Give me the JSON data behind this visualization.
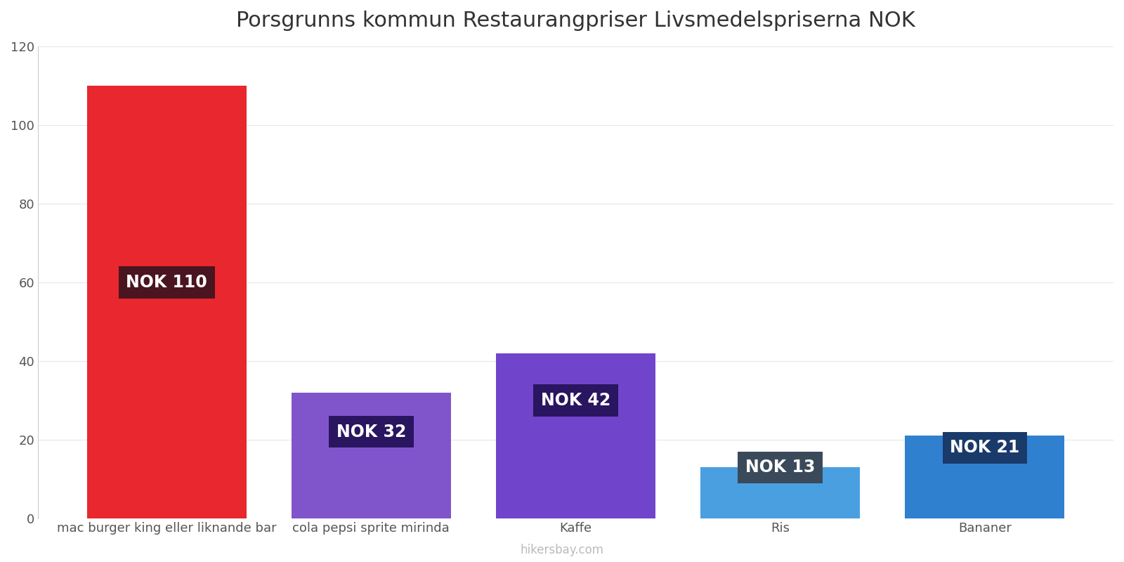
{
  "title": "Porsgrunns kommun Restaurangpriser Livsmedelspriserna NOK",
  "categories": [
    "mac burger king eller liknande bar",
    "cola pepsi sprite mirinda",
    "Kaffe",
    "Ris",
    "Bananer"
  ],
  "values": [
    110,
    32,
    42,
    13,
    21
  ],
  "bar_colors": [
    "#e8272e",
    "#8055cc",
    "#7045cc",
    "#4a9fe0",
    "#3080d0"
  ],
  "label_bg_colors": [
    "#4a1520",
    "#2a1560",
    "#2a1560",
    "#3a4a5a",
    "#1a3a6a"
  ],
  "label_texts": [
    "NOK 110",
    "NOK 32",
    "NOK 42",
    "NOK 13",
    "NOK 21"
  ],
  "ylim": [
    0,
    120
  ],
  "yticks": [
    0,
    20,
    40,
    60,
    80,
    100,
    120
  ],
  "title_fontsize": 22,
  "tick_fontsize": 13,
  "label_fontsize": 17,
  "watermark": "hikersbay.com",
  "background_color": "#ffffff"
}
